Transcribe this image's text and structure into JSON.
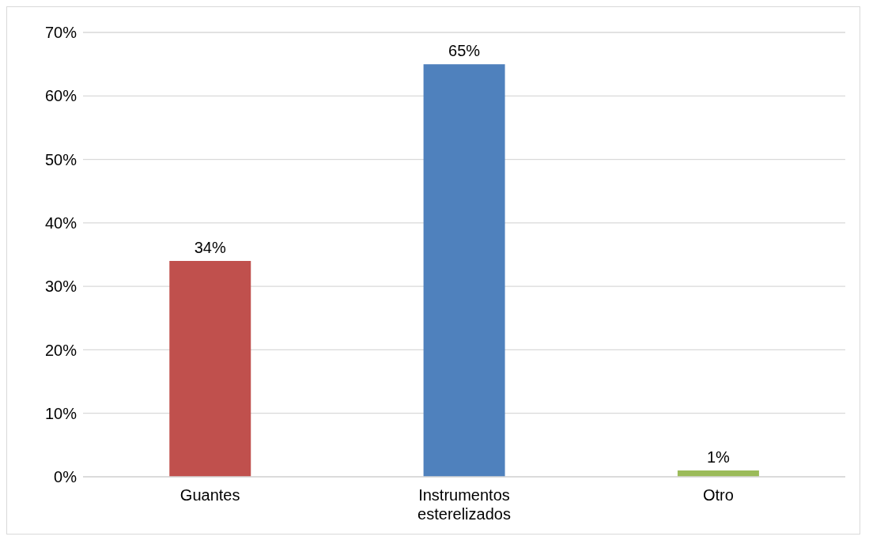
{
  "chart_data": {
    "type": "bar",
    "categories": [
      "Guantes",
      "Instrumentos esterelizados",
      "Otro"
    ],
    "values": [
      34,
      65,
      1
    ],
    "colors": [
      "#c0504d",
      "#4f81bd",
      "#9bbb59"
    ],
    "value_labels": [
      "34%",
      "65%",
      "1%"
    ],
    "ylim": [
      0,
      70
    ],
    "yticks": [
      {
        "value": 0,
        "label": "0%"
      },
      {
        "value": 10,
        "label": "10%"
      },
      {
        "value": 20,
        "label": "20%"
      },
      {
        "value": 30,
        "label": "30%"
      },
      {
        "value": 40,
        "label": "40%"
      },
      {
        "value": 50,
        "label": "50%"
      },
      {
        "value": 60,
        "label": "60%"
      },
      {
        "value": 70,
        "label": "70%"
      }
    ],
    "grid": "y"
  }
}
